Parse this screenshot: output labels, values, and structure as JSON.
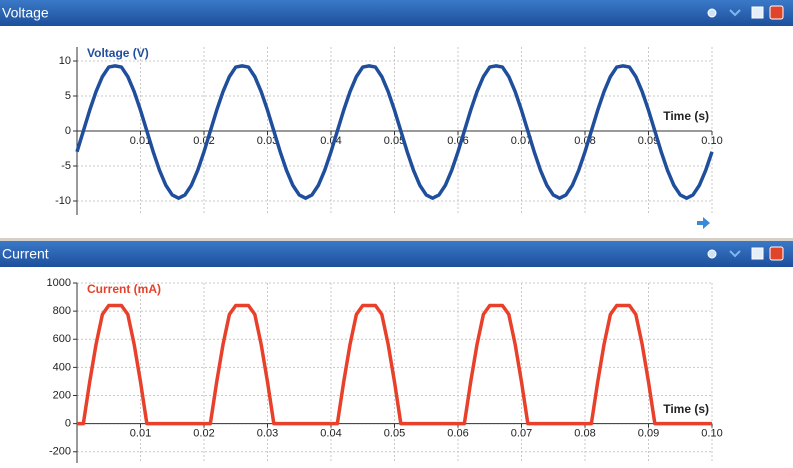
{
  "chart_data": [
    {
      "type": "line",
      "title": "Voltage",
      "y_label": "Voltage (V)",
      "x_label": "Time (s)",
      "x": [
        0,
        0.001,
        0.002,
        0.003,
        0.004,
        0.005,
        0.006,
        0.007,
        0.008,
        0.009,
        0.01,
        0.011,
        0.012,
        0.013,
        0.014,
        0.015,
        0.016,
        0.017,
        0.018,
        0.019,
        0.02,
        0.021,
        0.022,
        0.023,
        0.024,
        0.025,
        0.026,
        0.027,
        0.028,
        0.029,
        0.03,
        0.031,
        0.032,
        0.033,
        0.034,
        0.035,
        0.036,
        0.037,
        0.038,
        0.039,
        0.04,
        0.041,
        0.042,
        0.043,
        0.044,
        0.045,
        0.046,
        0.047,
        0.048,
        0.049,
        0.05,
        0.051,
        0.052,
        0.053,
        0.054,
        0.055,
        0.056,
        0.057,
        0.058,
        0.059,
        0.06,
        0.061,
        0.062,
        0.063,
        0.064,
        0.065,
        0.066,
        0.067,
        0.068,
        0.069,
        0.07,
        0.071,
        0.072,
        0.073,
        0.074,
        0.075,
        0.076,
        0.077,
        0.078,
        0.079,
        0.08,
        0.081,
        0.082,
        0.083,
        0.084,
        0.085,
        0.086,
        0.087,
        0.088,
        0.089,
        0.09,
        0.091,
        0.092,
        0.093,
        0.094,
        0.095,
        0.096,
        0.097,
        0.098,
        0.099,
        0.1
      ],
      "series": [
        {
          "color": "#1f4e9c",
          "values": [
            -2.97,
            0,
            2.97,
            5.64,
            7.77,
            9.13,
            9.3,
            9.13,
            7.77,
            5.64,
            2.97,
            0,
            -2.97,
            -5.64,
            -7.77,
            -9.13,
            -9.6,
            -9.13,
            -7.77,
            -5.64,
            -2.97,
            0,
            2.97,
            5.64,
            7.77,
            9.13,
            9.3,
            9.13,
            7.77,
            5.64,
            2.97,
            0,
            -2.97,
            -5.64,
            -7.77,
            -9.13,
            -9.6,
            -9.13,
            -7.77,
            -5.64,
            -2.97,
            0,
            2.97,
            5.64,
            7.77,
            9.13,
            9.3,
            9.13,
            7.77,
            5.64,
            2.97,
            0,
            -2.97,
            -5.64,
            -7.77,
            -9.13,
            -9.6,
            -9.13,
            -7.77,
            -5.64,
            -2.97,
            0,
            2.97,
            5.64,
            7.77,
            9.13,
            9.3,
            9.13,
            7.77,
            5.64,
            2.97,
            0,
            -2.97,
            -5.64,
            -7.77,
            -9.13,
            -9.6,
            -9.13,
            -7.77,
            -5.64,
            -2.97,
            0,
            2.97,
            5.64,
            7.77,
            9.13,
            9.3,
            9.13,
            7.77,
            5.64,
            2.97,
            0,
            -2.97,
            -5.64,
            -7.77,
            -9.13,
            -9.6,
            -9.13,
            -7.77,
            -5.64,
            -2.97
          ]
        }
      ],
      "xlim": [
        0,
        0.1
      ],
      "xticks": [
        0.01,
        0.02,
        0.03,
        0.04,
        0.05,
        0.06,
        0.07,
        0.08,
        0.09,
        {
          "value": 0.1,
          "label": "0.10"
        }
      ],
      "ylim": [
        -12,
        12
      ],
      "yticks": [
        -10,
        -5,
        0,
        5,
        10
      ],
      "grid": true
    },
    {
      "type": "line",
      "title": "Current",
      "y_label": "Current (mA)",
      "x_label": "Time (s)",
      "x": [
        0,
        0.001,
        0.002,
        0.003,
        0.004,
        0.005,
        0.006,
        0.007,
        0.008,
        0.009,
        0.01,
        0.011,
        0.012,
        0.013,
        0.014,
        0.015,
        0.016,
        0.017,
        0.018,
        0.019,
        0.02,
        0.021,
        0.022,
        0.023,
        0.024,
        0.025,
        0.026,
        0.027,
        0.028,
        0.029,
        0.03,
        0.031,
        0.032,
        0.033,
        0.034,
        0.035,
        0.036,
        0.037,
        0.038,
        0.039,
        0.04,
        0.041,
        0.042,
        0.043,
        0.044,
        0.045,
        0.046,
        0.047,
        0.048,
        0.049,
        0.05,
        0.051,
        0.052,
        0.053,
        0.054,
        0.055,
        0.056,
        0.057,
        0.058,
        0.059,
        0.06,
        0.061,
        0.062,
        0.063,
        0.064,
        0.065,
        0.066,
        0.067,
        0.068,
        0.069,
        0.07,
        0.071,
        0.072,
        0.073,
        0.074,
        0.075,
        0.076,
        0.077,
        0.078,
        0.079,
        0.08,
        0.081,
        0.082,
        0.083,
        0.084,
        0.085,
        0.086,
        0.087,
        0.088,
        0.089,
        0.09,
        0.091,
        0.092,
        0.093,
        0.094,
        0.095,
        0.096,
        0.097,
        0.098,
        0.099,
        0.1
      ],
      "series": [
        {
          "color": "#e8402a",
          "values": [
            0,
            0,
            297,
            564,
            777,
            840,
            840,
            840,
            777,
            564,
            297,
            0,
            0,
            0,
            0,
            0,
            0,
            0,
            0,
            0,
            0,
            0,
            297,
            564,
            777,
            840,
            840,
            840,
            777,
            564,
            297,
            0,
            0,
            0,
            0,
            0,
            0,
            0,
            0,
            0,
            0,
            0,
            297,
            564,
            777,
            840,
            840,
            840,
            777,
            564,
            297,
            0,
            0,
            0,
            0,
            0,
            0,
            0,
            0,
            0,
            0,
            0,
            297,
            564,
            777,
            840,
            840,
            840,
            777,
            564,
            297,
            0,
            0,
            0,
            0,
            0,
            0,
            0,
            0,
            0,
            0,
            0,
            297,
            564,
            777,
            840,
            840,
            840,
            777,
            564,
            297,
            0,
            0,
            0,
            0,
            0,
            0,
            0,
            0,
            0,
            0
          ]
        }
      ],
      "xlim": [
        0,
        0.1
      ],
      "xticks": [
        0.01,
        0.02,
        0.03,
        0.04,
        0.05,
        0.06,
        0.07,
        0.08,
        0.09,
        {
          "value": 0.1,
          "label": "0.10"
        }
      ],
      "ylim": [
        -280,
        1000
      ],
      "yticks": [
        -200,
        0,
        200,
        400,
        600,
        800,
        1000
      ],
      "grid": true
    }
  ]
}
